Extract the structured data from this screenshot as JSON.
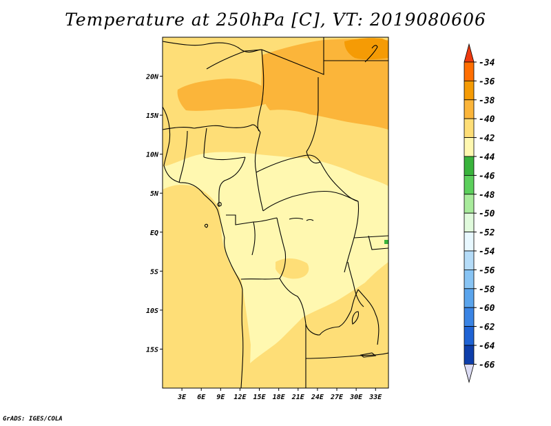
{
  "title": "Temperature at 250hPa [C], VT: 2019080606",
  "footer": "GrADS: IGES/COLA",
  "map": {
    "lon_range": [
      0,
      35
    ],
    "lat_range": [
      -20,
      25
    ],
    "lon_ticks": [
      "3E",
      "6E",
      "9E",
      "12E",
      "15E",
      "18E",
      "21E",
      "24E",
      "27E",
      "30E",
      "33E"
    ],
    "lat_ticks": [
      "20N",
      "15N",
      "10N",
      "5N",
      "EQ",
      "5S",
      "10S",
      "15S"
    ]
  },
  "colorbar": {
    "labels": [
      "-34",
      "-36",
      "-38",
      "-40",
      "-42",
      "-44",
      "-46",
      "-48",
      "-50",
      "-52",
      "-54",
      "-56",
      "-58",
      "-60",
      "-62",
      "-64",
      "-66"
    ],
    "colors": [
      "#ee3a0f",
      "#ff6e00",
      "#f59b05",
      "#fbb53a",
      "#fede77",
      "#fff8b0",
      "#39b33c",
      "#5ccf5c",
      "#a8eb9c",
      "#e0fadc",
      "#e8f8ff",
      "#b5dcf8",
      "#88c4f4",
      "#5aa4ec",
      "#3a84e4",
      "#1f63d4",
      "#0e3eaa",
      "#0a1a70"
    ],
    "top_arrow_color": "#ee3a0f",
    "bottom_arrow_color": "#dcdcf4"
  }
}
